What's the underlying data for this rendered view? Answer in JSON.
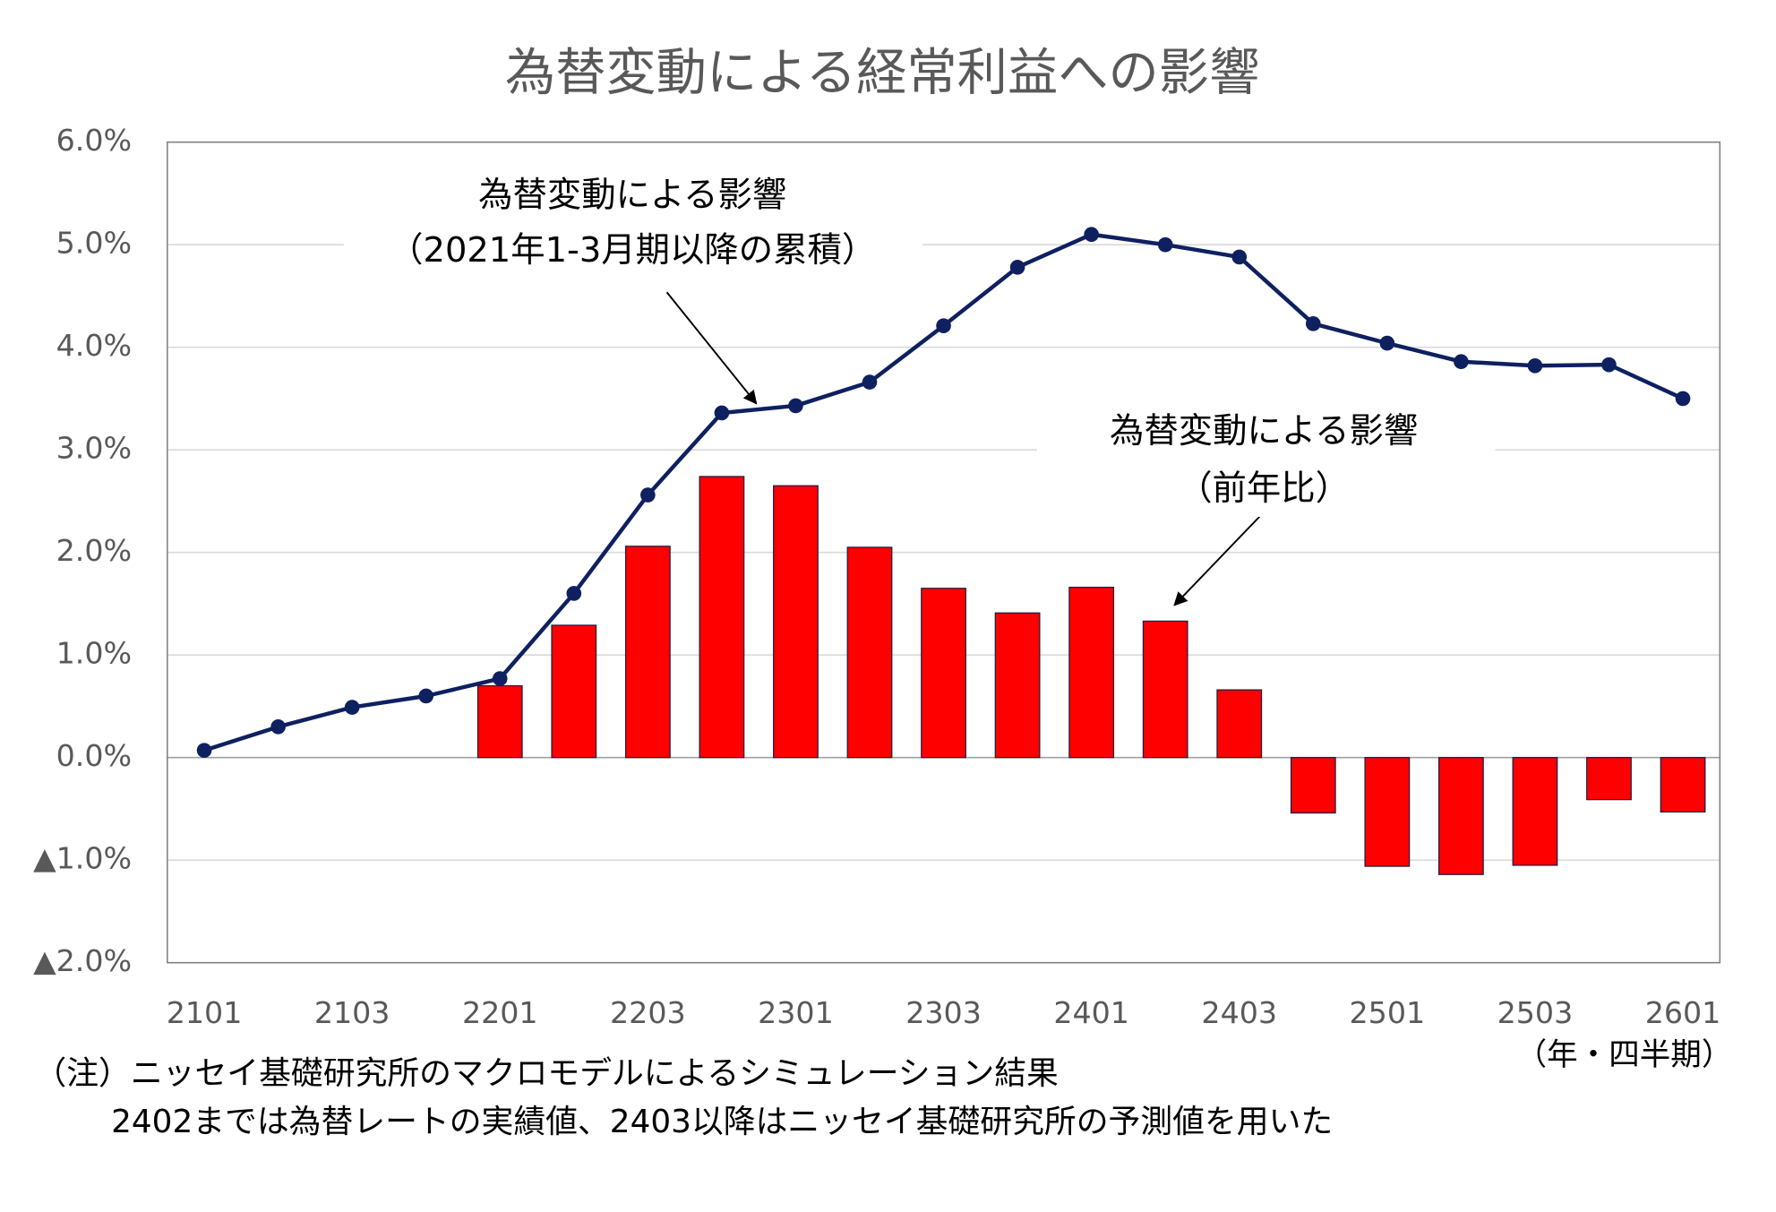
{
  "chart_data": {
    "type": "combo",
    "title": "為替変動による経常利益への影響",
    "categories": [
      "2101",
      null,
      "2103",
      null,
      "2201",
      null,
      "2203",
      null,
      "2301",
      null,
      "2303",
      null,
      "2401",
      null,
      "2403",
      null,
      "2501",
      null,
      "2503",
      null,
      "2601"
    ],
    "x_label": "（年・四半期）",
    "ylim": [
      -2,
      6
    ],
    "yticks": [
      {
        "value": 6,
        "label": "6.0%"
      },
      {
        "value": 5,
        "label": "5.0%"
      },
      {
        "value": 4,
        "label": "4.0%"
      },
      {
        "value": 3,
        "label": "3.0%"
      },
      {
        "value": 2,
        "label": "2.0%"
      },
      {
        "value": 1,
        "label": "1.0%"
      },
      {
        "value": 0,
        "label": "0.0%"
      },
      {
        "value": -1,
        "label": "▲1.0%"
      },
      {
        "value": -2,
        "label": "▲2.0%"
      }
    ],
    "grid": true,
    "series": [
      {
        "name": "為替変動による影響",
        "subname": "（前年比）",
        "type": "bar",
        "color": "#ff0000",
        "values": [
          null,
          null,
          null,
          null,
          0.7,
          1.29,
          2.06,
          2.74,
          2.65,
          2.05,
          1.65,
          1.41,
          1.66,
          1.33,
          0.66,
          -0.54,
          -1.06,
          -1.14,
          -1.05,
          -0.41,
          -0.53
        ]
      },
      {
        "name": "為替変動による影響",
        "subname": "（2021年1-3月期以降の累積）",
        "type": "line",
        "color": "#0f2060",
        "values": [
          0.07,
          0.3,
          0.49,
          0.6,
          0.77,
          1.6,
          2.56,
          3.36,
          3.43,
          3.66,
          4.21,
          4.78,
          5.1,
          5.0,
          4.88,
          4.23,
          4.04,
          3.86,
          3.82,
          3.83,
          3.5
        ]
      }
    ],
    "notes": [
      "（注）ニッセイ基礎研究所のマクロモデルによるシミュレーション結果",
      "2402までは為替レートの実績値、2403以降はニッセイ基礎研究所の予測値を用いた"
    ]
  }
}
